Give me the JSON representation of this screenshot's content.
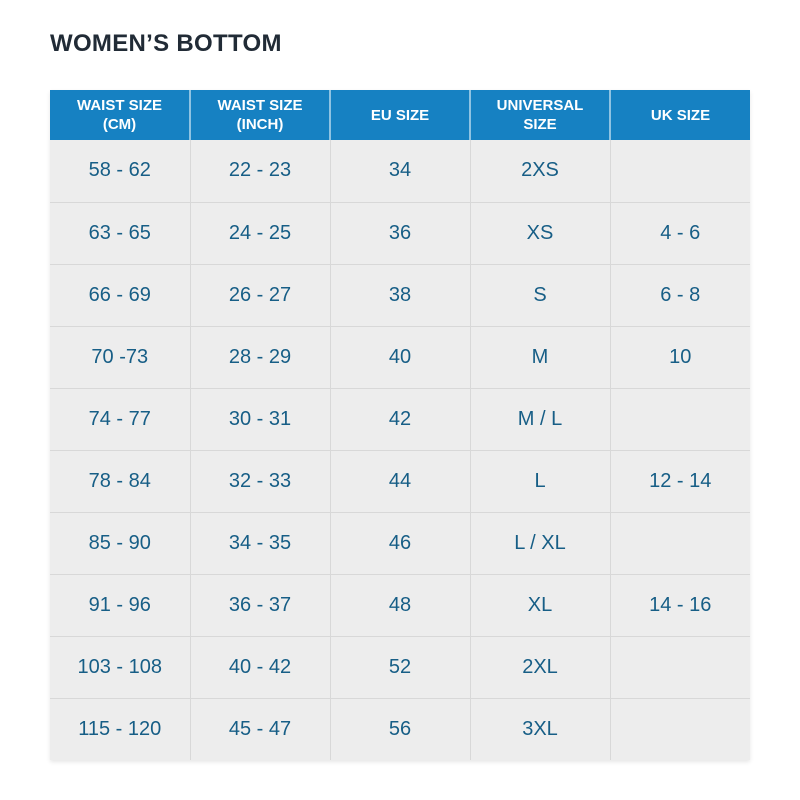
{
  "page": {
    "title": "WOMEN’S BOTTOM"
  },
  "table": {
    "headers": [
      "WAIST SIZE (CM)",
      "WAIST SIZE (INCH)",
      "EU SIZE",
      "UNIVERSAL SIZE",
      "UK SIZE"
    ],
    "rows": [
      [
        "58 - 62",
        "22 - 23",
        "34",
        "2XS",
        ""
      ],
      [
        "63 - 65",
        "24 - 25",
        "36",
        "XS",
        "4 - 6"
      ],
      [
        "66 - 69",
        "26 - 27",
        "38",
        "S",
        "6 - 8"
      ],
      [
        "70 -73",
        "28 - 29",
        "40",
        "M",
        "10"
      ],
      [
        "74 - 77",
        "30 - 31",
        "42",
        "M / L",
        ""
      ],
      [
        "78 - 84",
        "32 - 33",
        "44",
        "L",
        "12 - 14"
      ],
      [
        "85 - 90",
        "34 - 35",
        "46",
        "L / XL",
        ""
      ],
      [
        "91 - 96",
        "36 - 37",
        "48",
        "XL",
        "14 - 16"
      ],
      [
        "103 - 108",
        "40 - 42",
        "52",
        "2XL",
        ""
      ],
      [
        "115 - 120",
        "45 - 47",
        "56",
        "3XL",
        ""
      ]
    ],
    "colors": {
      "header_bg": "#1681c2",
      "header_text": "#ffffff",
      "header_divider": "#8fc3e2",
      "cell_bg": "#ededed",
      "cell_text": "#175e86",
      "grid_line": "#d8d8d8",
      "title_text": "#212b36",
      "page_bg": "#ffffff"
    }
  }
}
